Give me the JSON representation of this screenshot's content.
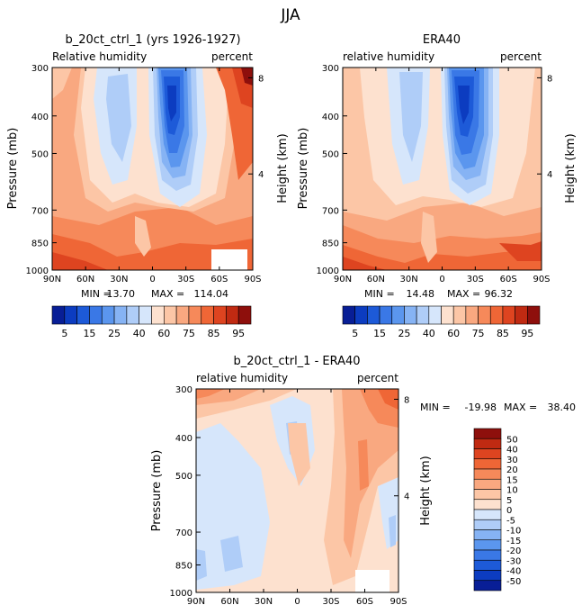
{
  "figure_title": "JJA",
  "palette_lo": [
    "#081e96",
    "#0c3cc0",
    "#1d5ad8",
    "#3a78e6",
    "#5b96ee",
    "#86b3f4",
    "#afcdf8",
    "#d6e6fb"
  ],
  "palette_hi": [
    "#fde1cf",
    "#fcc6a6",
    "#f9a880",
    "#f6895a",
    "#ef6636",
    "#de4420",
    "#c02a12",
    "#8e0f0c"
  ],
  "diff_palette": [
    "#081e96",
    "#0c3cc0",
    "#1d5ad8",
    "#3a78e6",
    "#5b96ee",
    "#86b3f4",
    "#afcdf8",
    "#d6e6fb",
    "#fde1cf",
    "#fcc6a6",
    "#f9a880",
    "#f6895a",
    "#ef6636",
    "#de4420",
    "#c02a12",
    "#8e0f0c"
  ],
  "chart_data": [
    {
      "type": "heatmap",
      "title": "b_20ct_ctrl_1 (yrs 1926-1927)",
      "subtitle_left": "Relative humidity",
      "subtitle_right": "percent",
      "ylabel": "Pressure (mb)",
      "y2label": "Height (km)",
      "x_ticks": [
        "90N",
        "60N",
        "30N",
        "0",
        "30S",
        "60S",
        "90S"
      ],
      "y_ticks": [
        "300",
        "400",
        "500",
        "700",
        "850",
        "1000"
      ],
      "y2_ticks": [
        "8",
        "4"
      ],
      "stats": {
        "min_label": "MIN =",
        "min": "13.70",
        "max_label": "MAX =",
        "max": "114.04"
      },
      "colorbar_labels": [
        "5",
        "15",
        "25",
        "40",
        "60",
        "75",
        "85",
        "95"
      ],
      "colorbar_levels": [
        5,
        10,
        15,
        20,
        25,
        30,
        40,
        50,
        60,
        70,
        75,
        80,
        85,
        90,
        95
      ]
    },
    {
      "type": "heatmap",
      "title": "ERA40",
      "subtitle_left": "relative humidity",
      "subtitle_right": "percent",
      "ylabel": "Pressure (mb)",
      "y2label": "Height (km)",
      "x_ticks": [
        "90N",
        "60N",
        "30N",
        "0",
        "30S",
        "60S",
        "90S"
      ],
      "y_ticks": [
        "300",
        "400",
        "500",
        "700",
        "850",
        "1000"
      ],
      "y2_ticks": [
        "8",
        "4"
      ],
      "stats": {
        "min_label": "MIN =",
        "min": "14.48",
        "max_label": "MAX =",
        "max": "96.32"
      },
      "colorbar_labels": [
        "5",
        "15",
        "25",
        "40",
        "60",
        "75",
        "85",
        "95"
      ],
      "colorbar_levels": [
        5,
        10,
        15,
        20,
        25,
        30,
        40,
        50,
        60,
        70,
        75,
        80,
        85,
        90,
        95
      ]
    },
    {
      "type": "heatmap",
      "title": "b_20ct_ctrl_1 - ERA40",
      "subtitle_left": "relative humidity",
      "subtitle_right": "percent",
      "ylabel": "Pressure (mb)",
      "y2label": "Height (km)",
      "x_ticks": [
        "90N",
        "60N",
        "30N",
        "0",
        "30S",
        "60S",
        "90S"
      ],
      "y_ticks": [
        "300",
        "400",
        "500",
        "700",
        "850",
        "1000"
      ],
      "y2_ticks": [
        "8",
        "4"
      ],
      "stats": {
        "min_label": "MIN =",
        "min": "-19.98",
        "max_label": "MAX =",
        "max": "38.40"
      },
      "colorbar_labels": [
        "50",
        "40",
        "30",
        "20",
        "15",
        "10",
        "5",
        "0",
        "-5",
        "-10",
        "-15",
        "-20",
        "-30",
        "-40",
        "-50"
      ],
      "colorbar_levels": [
        -50,
        -40,
        -30,
        -20,
        -15,
        -10,
        -5,
        0,
        5,
        10,
        15,
        20,
        30,
        40,
        50
      ]
    }
  ]
}
